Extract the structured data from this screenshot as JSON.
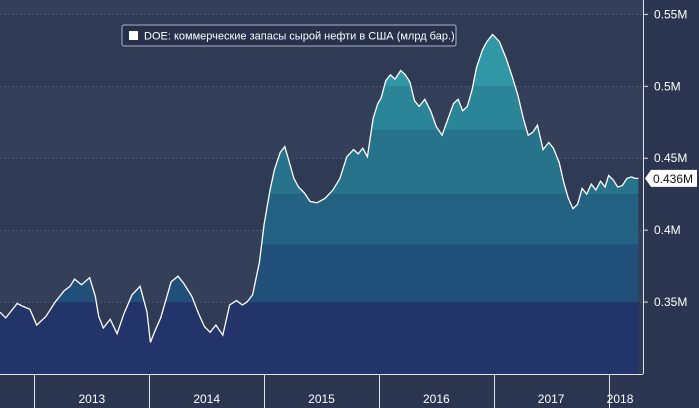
{
  "chart_data": {
    "type": "area",
    "legend": "DOE: коммерческие запасы сырой нефти в США (млрд бар.)",
    "last_value_label": "0.436M",
    "ylim": [
      300000,
      560000
    ],
    "y_ticks": [
      {
        "value": 350000,
        "label": "0.35M"
      },
      {
        "value": 400000,
        "label": "0.4M"
      },
      {
        "value": 450000,
        "label": "0.45M"
      },
      {
        "value": 500000,
        "label": "0.5M"
      },
      {
        "value": 550000,
        "label": "0.55M"
      }
    ],
    "x_range": [
      2012.7,
      2018.3
    ],
    "x_ticks": [
      {
        "value": 2013.5,
        "label": "2013"
      },
      {
        "value": 2014.5,
        "label": "2014"
      },
      {
        "value": 2015.5,
        "label": "2015"
      },
      {
        "value": 2016.5,
        "label": "2016"
      },
      {
        "value": 2017.5,
        "label": "2017"
      },
      {
        "value": 2018.1,
        "label": "2018"
      }
    ],
    "x_dividers": [
      2013,
      2014,
      2015,
      2016,
      2017,
      2018
    ],
    "grid": true,
    "legend_position": "top-left",
    "colors": {
      "background": "#2b3550",
      "line": "#ffffff",
      "band_1": "#22346a",
      "band_2": "#204f7a",
      "band_3": "#236282",
      "band_4": "#26738b",
      "band_5": "#2a8598",
      "band_6": "#3097a7"
    },
    "x": [
      2012.7,
      2012.75,
      2012.79,
      2012.85,
      2012.9,
      2012.96,
      2013.02,
      2013.1,
      2013.18,
      2013.26,
      2013.31,
      2013.35,
      2013.41,
      2013.48,
      2013.53,
      2013.56,
      2013.6,
      2013.66,
      2013.72,
      2013.78,
      2013.85,
      2013.92,
      2013.98,
      2014.01,
      2014.05,
      2014.1,
      2014.14,
      2014.19,
      2014.25,
      2014.3,
      2014.37,
      2014.43,
      2014.48,
      2014.53,
      2014.58,
      2014.64,
      2014.7,
      2014.76,
      2014.81,
      2014.85,
      2014.9,
      2014.96,
      2015.0,
      2015.05,
      2015.09,
      2015.14,
      2015.18,
      2015.22,
      2015.26,
      2015.3,
      2015.35,
      2015.4,
      2015.46,
      2015.53,
      2015.6,
      2015.66,
      2015.72,
      2015.78,
      2015.82,
      2015.86,
      2015.9,
      2015.95,
      2015.99,
      2016.02,
      2016.06,
      2016.1,
      2016.14,
      2016.19,
      2016.23,
      2016.27,
      2016.31,
      2016.35,
      2016.4,
      2016.45,
      2016.5,
      2016.55,
      2016.6,
      2016.65,
      2016.69,
      2016.73,
      2016.77,
      2016.81,
      2016.85,
      2016.9,
      2016.94,
      2016.99,
      2017.05,
      2017.11,
      2017.16,
      2017.21,
      2017.26,
      2017.3,
      2017.34,
      2017.38,
      2017.43,
      2017.48,
      2017.52,
      2017.57,
      2017.61,
      2017.65,
      2017.69,
      2017.73,
      2017.77,
      2017.81,
      2017.85,
      2017.89,
      2017.93,
      2017.97,
      2018.0,
      2018.04,
      2018.08,
      2018.12,
      2018.16,
      2018.2,
      2018.23,
      2018.26
    ],
    "values": [
      343000,
      339000,
      343000,
      349000,
      347000,
      345000,
      334000,
      340000,
      350000,
      358000,
      361000,
      366000,
      362000,
      367000,
      354000,
      340000,
      332000,
      338000,
      328000,
      342000,
      355000,
      361000,
      343000,
      322000,
      330000,
      339000,
      350000,
      364000,
      368000,
      363000,
      354000,
      342000,
      333000,
      329000,
      334000,
      327000,
      348000,
      351000,
      348000,
      350000,
      355000,
      378000,
      404000,
      427000,
      442000,
      454000,
      458000,
      447000,
      436000,
      430000,
      426000,
      420000,
      419000,
      422000,
      428000,
      436000,
      451000,
      456000,
      453000,
      457000,
      451000,
      478000,
      488000,
      492000,
      504000,
      508000,
      505000,
      511000,
      508000,
      503000,
      490000,
      486000,
      491000,
      483000,
      472000,
      466000,
      477000,
      488000,
      491000,
      483000,
      486000,
      497000,
      513000,
      525000,
      531000,
      536000,
      531000,
      519000,
      507000,
      494000,
      477000,
      466000,
      468000,
      473000,
      456000,
      461000,
      457000,
      447000,
      433000,
      422000,
      415000,
      418000,
      429000,
      425000,
      432000,
      428000,
      434000,
      430000,
      438000,
      435000,
      430000,
      431000,
      436000,
      437000,
      436000,
      436000
    ]
  }
}
